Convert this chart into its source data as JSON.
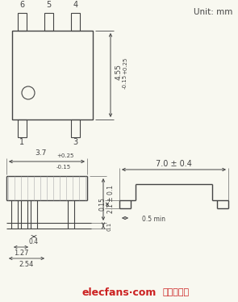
{
  "unit_text": "Unit: mm",
  "pin_labels_top": [
    "6",
    "5",
    "4"
  ],
  "pin_labels_bottom": [
    "1",
    "3"
  ],
  "dim_455": "4.55",
  "dim_455_tol_p": "+0.25",
  "dim_455_tol_m": "-0.15",
  "dim_37": "3.7",
  "dim_37_tol_p": "+0.25",
  "dim_37_tol_m": "-0.15",
  "dim_21": "2.1 ± 0.1",
  "dim_01": "0.1",
  "dim_04": "0.4",
  "dim_127": "1.27",
  "dim_254": "2.54",
  "dim_015": "0.15",
  "dim_70": "7.0 ± 0.4",
  "dim_05min": "0.5 min",
  "watermark": "elecfans·com",
  "watermark2": "电子发烧友",
  "bg_color": "#f8f8f0",
  "line_color": "#444444",
  "watermark_color": "#cc2222"
}
